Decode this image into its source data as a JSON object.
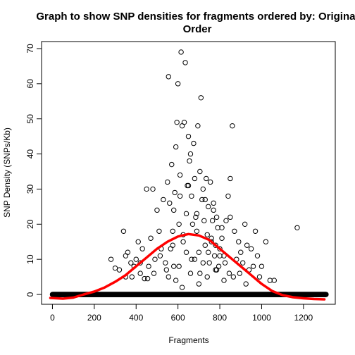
{
  "chart_data": {
    "type": "scatter",
    "title_line1": "Graph to show SNP densities for fragments ordered by: Original",
    "title_line2": "Order",
    "xlabel": "Fragments",
    "ylabel": "SNP Density (SNPs/Kb)",
    "xlim": [
      -52,
      1352
    ],
    "ylim": [
      -2.8,
      72
    ],
    "xticks": [
      0,
      200,
      400,
      600,
      800,
      1000,
      1200
    ],
    "yticks": [
      0,
      10,
      20,
      30,
      40,
      50,
      60,
      70
    ],
    "grid": false,
    "legend": "none",
    "colors": {
      "points": "#000000",
      "curve": "#ff0000",
      "frame": "#000000"
    },
    "zero_points_x_range": [
      0,
      1308
    ],
    "zero_points_count": 1309,
    "series": [
      {
        "style": "open-circle",
        "x": [
          280,
          300,
          320,
          340,
          350,
          360,
          375,
          390,
          400,
          410,
          420,
          430,
          440,
          450,
          460,
          470,
          480,
          490,
          500,
          510,
          520,
          530,
          540,
          550,
          555,
          560,
          565,
          570,
          575,
          580,
          585,
          590,
          595,
          600,
          605,
          610,
          615,
          620,
          625,
          630,
          635,
          640,
          645,
          650,
          655,
          660,
          665,
          670,
          675,
          680,
          685,
          690,
          695,
          700,
          705,
          710,
          715,
          720,
          725,
          730,
          735,
          740,
          745,
          750,
          755,
          760,
          765,
          770,
          775,
          780,
          785,
          790,
          795,
          800,
          810,
          820,
          830,
          840,
          850,
          860,
          870,
          880,
          890,
          900,
          910,
          920,
          930,
          940,
          950,
          960,
          970,
          980,
          990,
          1000,
          1020,
          1040,
          1060,
          1170,
          555,
          575,
          590,
          605,
          620,
          640,
          660,
          680,
          700,
          720,
          740,
          760,
          780,
          800,
          820,
          845,
          580,
          610,
          650,
          690,
          730,
          770,
          810,
          850,
          350,
          380,
          420,
          455,
          485,
          515,
          545,
          625,
          665,
          705,
          745,
          785,
          825,
          865,
          895,
          925
        ],
        "y": [
          10,
          7.5,
          7,
          18,
          5,
          12,
          9,
          8,
          10,
          15,
          6,
          13,
          4.5,
          30,
          8,
          16,
          30,
          10,
          24,
          18,
          13,
          27,
          9,
          32,
          62,
          26,
          13,
          37,
          18,
          24,
          29,
          42,
          49,
          60,
          20,
          34,
          69,
          48,
          17,
          49,
          66,
          23,
          31,
          45,
          38,
          40,
          28,
          20,
          43,
          33,
          22,
          18,
          48,
          12,
          35,
          56,
          27,
          30,
          21,
          14,
          33,
          17,
          25,
          9,
          32,
          16,
          21,
          26,
          11,
          14,
          22,
          19,
          8,
          13,
          16,
          11,
          21,
          28,
          33,
          48,
          18,
          10,
          15,
          12,
          9,
          20,
          14,
          7,
          13,
          8,
          18,
          11,
          5,
          8,
          15,
          4,
          4,
          19,
          5,
          14,
          4,
          8,
          2,
          12,
          6,
          10,
          3,
          9,
          5,
          15,
          7,
          11,
          4,
          6,
          8,
          28,
          31,
          23,
          27,
          24,
          19,
          22,
          11,
          5,
          9,
          4.5,
          6,
          11,
          7,
          15,
          10,
          6,
          12,
          7,
          9,
          5,
          6,
          3
        ]
      },
      {
        "style": "line",
        "x": [
          -10,
          50,
          100,
          150,
          200,
          250,
          300,
          350,
          400,
          450,
          500,
          550,
          600,
          650,
          700,
          750,
          800,
          850,
          900,
          950,
          1000,
          1050,
          1100,
          1150,
          1200,
          1250,
          1300
        ],
        "y": [
          -1.0,
          -1.2,
          -0.9,
          0.0,
          0.8,
          2.0,
          3.6,
          5.5,
          8.0,
          10.5,
          13.0,
          15.0,
          16.5,
          17.2,
          16.8,
          15.5,
          13.0,
          10.5,
          8.0,
          5.5,
          3.0,
          1.0,
          -0.2,
          -0.8,
          -1.1,
          -1.3,
          -1.4
        ]
      }
    ]
  }
}
